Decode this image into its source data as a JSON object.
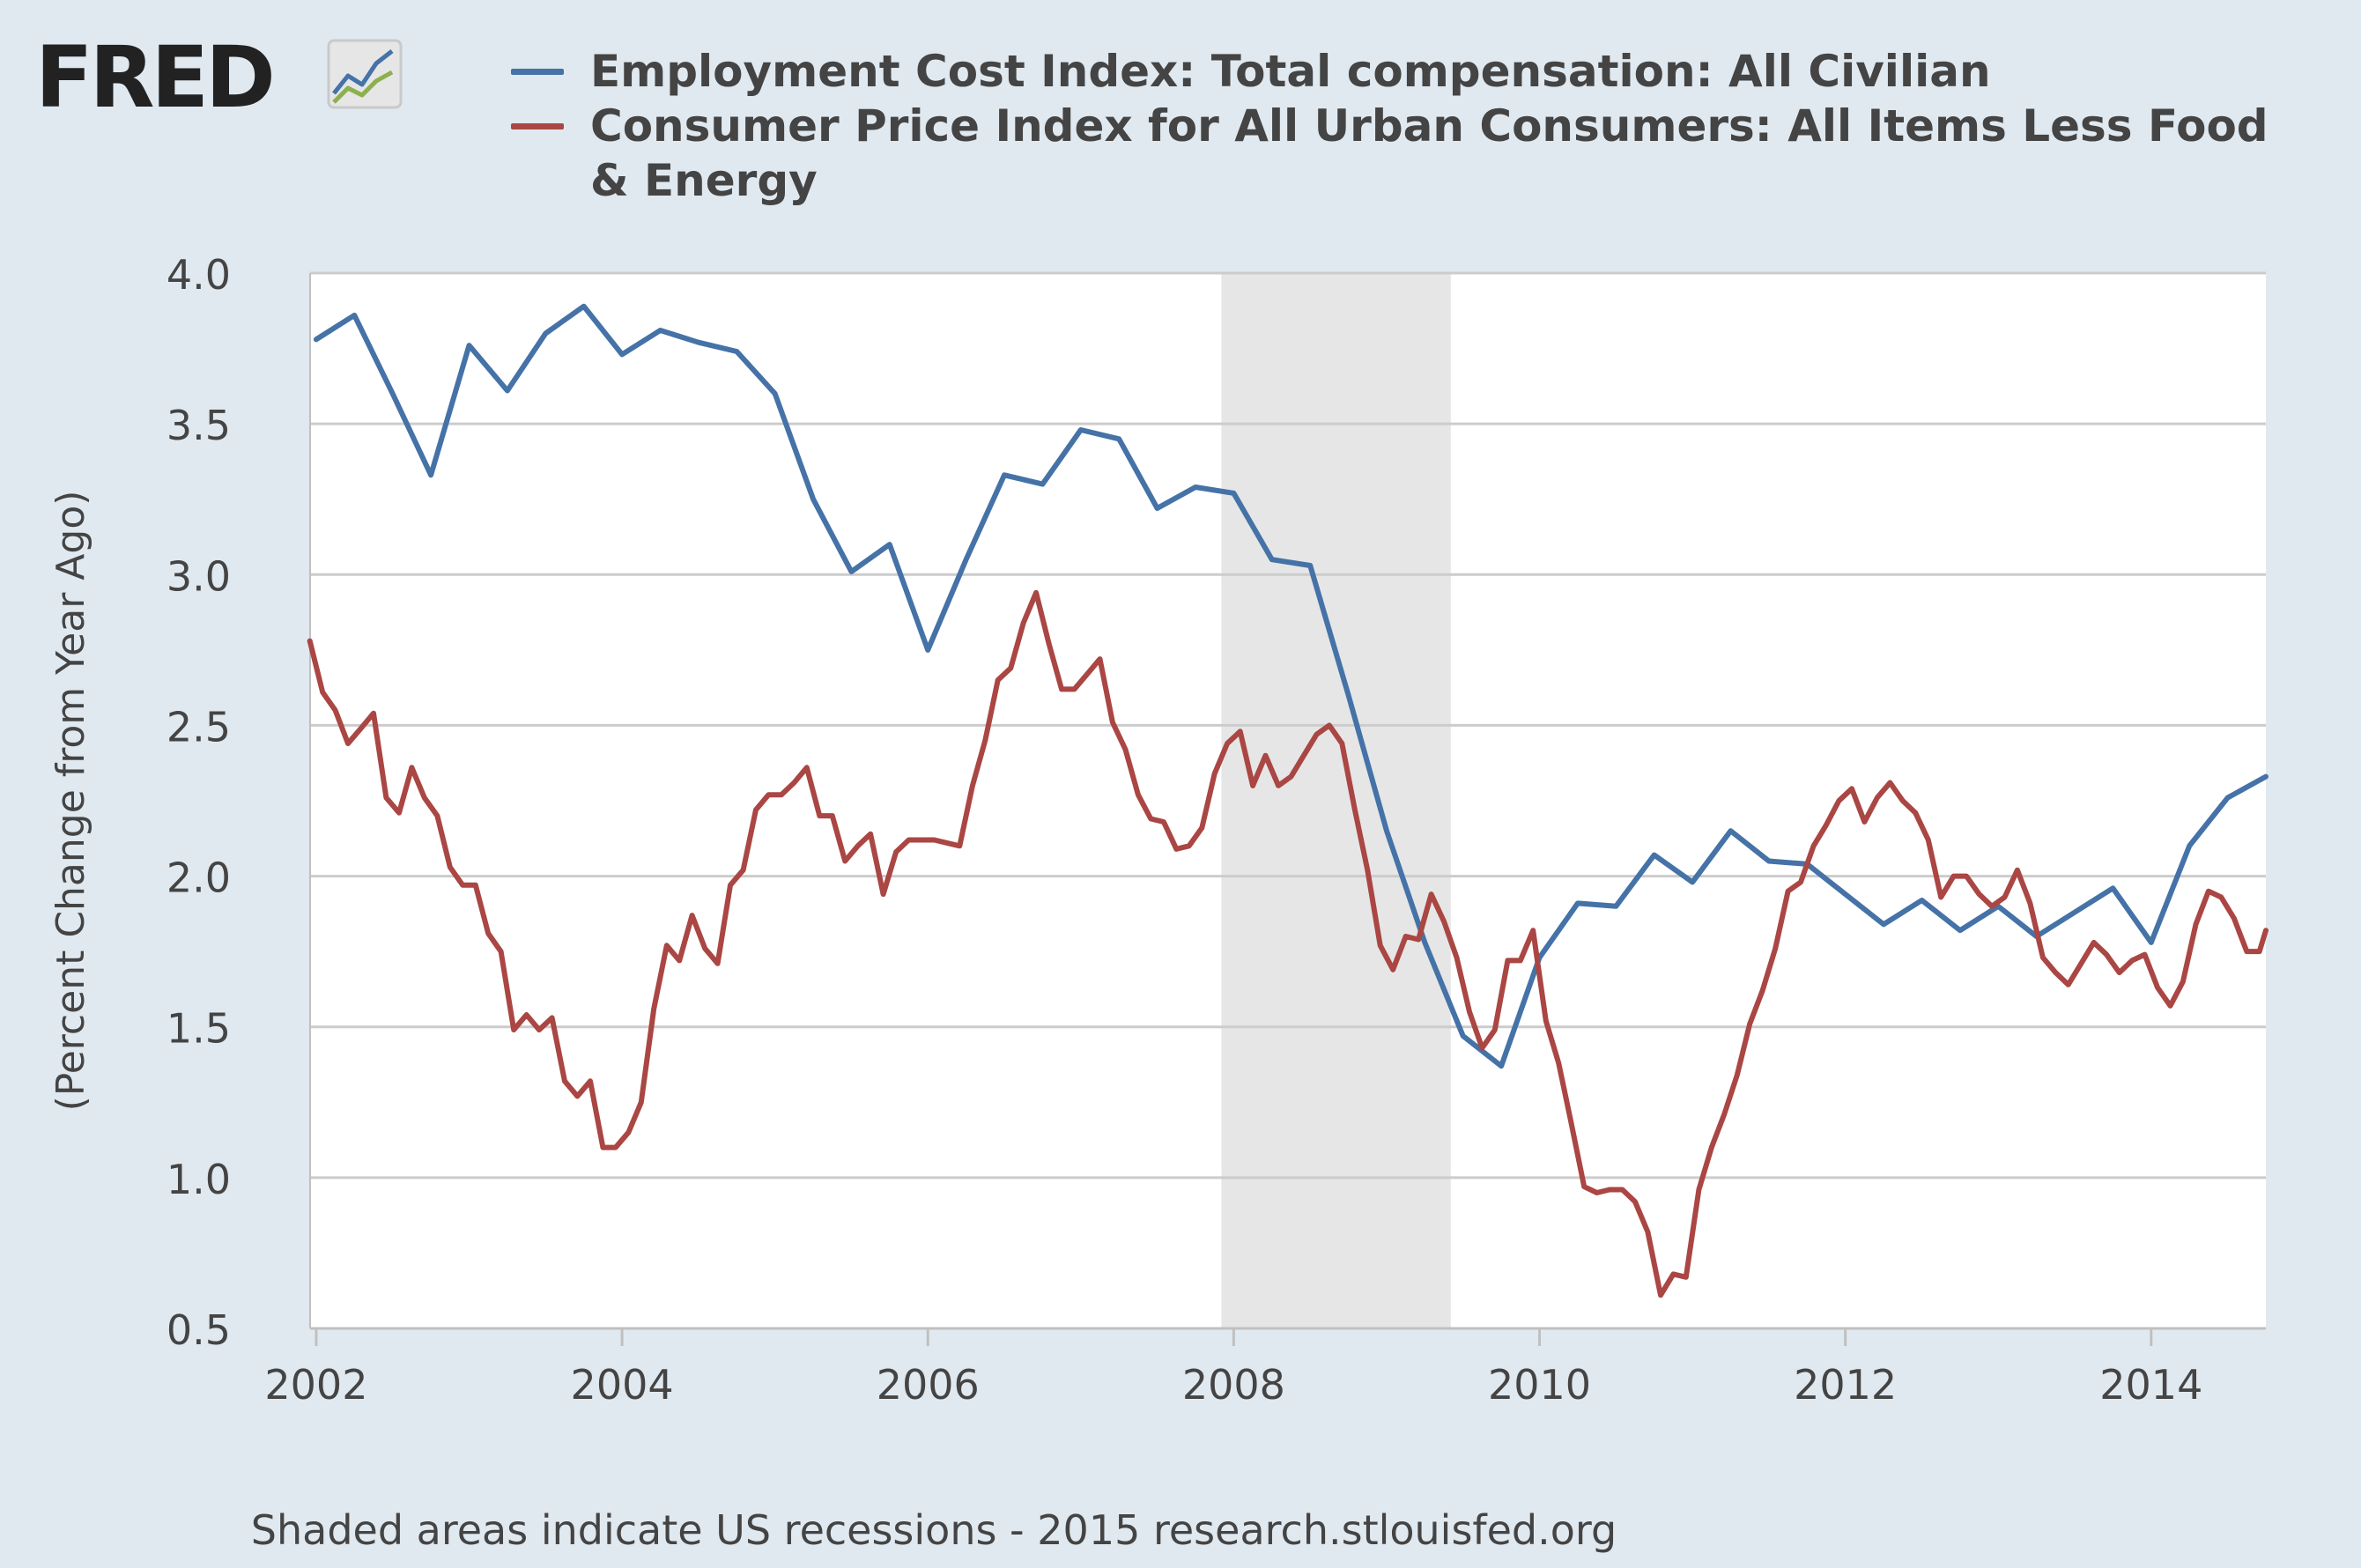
{
  "logo": {
    "text": "FRED",
    "icon": "line-chart-icon"
  },
  "footer": {
    "text": "Shaded areas indicate US recessions - 2015 research.stlouisfed.org"
  },
  "colors": {
    "eci": "#4572a7",
    "cpi": "#aa4643",
    "recession": "#e6e6e6",
    "background": "#e1e9f0",
    "plot": "#ffffff",
    "grid": "#cccccc"
  },
  "chart_data": {
    "type": "line",
    "title": "",
    "xlabel": "",
    "ylabel": "(Percent Change from Year Ago)",
    "xlim": [
      2001.96,
      2014.75
    ],
    "ylim": [
      0.5,
      4.0
    ],
    "yticks": [
      0.5,
      1.0,
      1.5,
      2.0,
      2.5,
      3.0,
      3.5,
      4.0
    ],
    "ytick_labels": [
      "0.5",
      "1.0",
      "1.5",
      "2.0",
      "2.5",
      "3.0",
      "3.5",
      "4.0"
    ],
    "xticks": [
      2002,
      2004,
      2006,
      2008,
      2010,
      2012,
      2014
    ],
    "xtick_labels": [
      "2002",
      "2004",
      "2006",
      "2008",
      "2010",
      "2012",
      "2014"
    ],
    "legend_position": "top",
    "recessions": [
      [
        2007.92,
        2009.42
      ]
    ],
    "series": [
      {
        "name": "Employment Cost Index: Total compensation: All Civilian",
        "color": "#4572a7",
        "x": [
          2002.0,
          2002.25,
          2002.5,
          2002.75,
          2003.0,
          2003.25,
          2003.5,
          2003.75,
          2004.0,
          2004.25,
          2004.5,
          2004.75,
          2005.0,
          2005.25,
          2005.5,
          2005.75,
          2006.0,
          2006.25,
          2006.5,
          2006.75,
          2007.0,
          2007.25,
          2007.5,
          2007.75,
          2008.0,
          2008.25,
          2008.5,
          2008.75,
          2009.0,
          2009.25,
          2009.5,
          2009.75,
          2010.0,
          2010.25,
          2010.5,
          2010.75,
          2011.0,
          2011.25,
          2011.5,
          2011.75,
          2012.0,
          2012.25,
          2012.5,
          2012.75,
          2013.0,
          2013.25,
          2013.5,
          2013.75,
          2014.0,
          2014.25,
          2014.5,
          2014.75
        ],
        "values": [
          3.78,
          3.86,
          3.6,
          3.33,
          3.76,
          3.61,
          3.8,
          3.89,
          3.73,
          3.81,
          3.77,
          3.74,
          3.6,
          3.25,
          3.01,
          3.1,
          2.75,
          3.05,
          3.33,
          3.3,
          3.48,
          3.45,
          3.22,
          3.29,
          3.27,
          3.05,
          3.03,
          2.6,
          2.15,
          1.78,
          1.47,
          1.37,
          1.73,
          1.91,
          1.9,
          2.07,
          1.98,
          2.15,
          2.05,
          2.04,
          1.94,
          1.84,
          1.92,
          1.82,
          1.9,
          1.8,
          1.88,
          1.96,
          1.78,
          2.1,
          2.26,
          2.33
        ]
      },
      {
        "name": "Consumer Price Index for All Urban Consumers: All Items Less Food & Energy",
        "color": "#aa4643",
        "x": [
          2001.958,
          2002.042,
          2002.125,
          2002.208,
          2002.292,
          2002.375,
          2002.458,
          2002.542,
          2002.625,
          2002.708,
          2002.792,
          2002.875,
          2002.958,
          2003.042,
          2003.125,
          2003.208,
          2003.292,
          2003.375,
          2003.458,
          2003.542,
          2003.625,
          2003.708,
          2003.792,
          2003.875,
          2003.958,
          2004.042,
          2004.125,
          2004.208,
          2004.292,
          2004.375,
          2004.458,
          2004.542,
          2004.625,
          2004.708,
          2004.792,
          2004.875,
          2004.958,
          2005.042,
          2005.125,
          2005.208,
          2005.292,
          2005.375,
          2005.458,
          2005.542,
          2005.625,
          2005.708,
          2005.792,
          2005.875,
          2005.958,
          2006.042,
          2006.125,
          2006.208,
          2006.292,
          2006.375,
          2006.458,
          2006.542,
          2006.625,
          2006.708,
          2006.792,
          2006.875,
          2006.958,
          2007.042,
          2007.125,
          2007.208,
          2007.292,
          2007.375,
          2007.458,
          2007.542,
          2007.625,
          2007.708,
          2007.792,
          2007.875,
          2007.958,
          2008.042,
          2008.125,
          2008.208,
          2008.292,
          2008.375,
          2008.458,
          2008.542,
          2008.625,
          2008.708,
          2008.792,
          2008.875,
          2008.958,
          2009.042,
          2009.125,
          2009.208,
          2009.292,
          2009.375,
          2009.458,
          2009.542,
          2009.625,
          2009.708,
          2009.792,
          2009.875,
          2009.958,
          2010.042,
          2010.125,
          2010.208,
          2010.292,
          2010.375,
          2010.458,
          2010.542,
          2010.625,
          2010.708,
          2010.792,
          2010.875,
          2010.958,
          2011.042,
          2011.125,
          2011.208,
          2011.292,
          2011.375,
          2011.458,
          2011.542,
          2011.625,
          2011.708,
          2011.792,
          2011.875,
          2011.958,
          2012.042,
          2012.125,
          2012.208,
          2012.292,
          2012.375,
          2012.458,
          2012.542,
          2012.625,
          2012.708,
          2012.792,
          2012.875,
          2012.958,
          2013.042,
          2013.125,
          2013.208,
          2013.292,
          2013.375,
          2013.458,
          2013.542,
          2013.625,
          2013.708,
          2013.792,
          2013.875,
          2013.958,
          2014.042,
          2014.125,
          2014.208,
          2014.292,
          2014.375,
          2014.458,
          2014.542,
          2014.625,
          2014.708,
          2014.75
        ],
        "values": [
          2.78,
          2.61,
          2.55,
          2.44,
          2.49,
          2.54,
          2.26,
          2.21,
          2.36,
          2.26,
          2.2,
          2.03,
          1.97,
          1.97,
          1.81,
          1.75,
          1.49,
          1.54,
          1.49,
          1.53,
          1.32,
          1.27,
          1.32,
          1.1,
          1.1,
          1.15,
          1.25,
          1.56,
          1.77,
          1.72,
          1.87,
          1.76,
          1.71,
          1.97,
          2.02,
          2.22,
          2.27,
          2.27,
          2.31,
          2.36,
          2.2,
          2.2,
          2.05,
          2.1,
          2.14,
          1.94,
          2.08,
          2.12,
          2.12,
          2.12,
          2.11,
          2.1,
          2.3,
          2.45,
          2.65,
          2.69,
          2.84,
          2.94,
          2.77,
          2.62,
          2.62,
          2.67,
          2.72,
          2.51,
          2.42,
          2.27,
          2.19,
          2.18,
          2.09,
          2.1,
          2.16,
          2.34,
          2.44,
          2.48,
          2.3,
          2.4,
          2.3,
          2.33,
          2.4,
          2.47,
          2.5,
          2.44,
          2.22,
          2.02,
          1.77,
          1.69,
          1.8,
          1.79,
          1.94,
          1.85,
          1.73,
          1.55,
          1.43,
          1.49,
          1.72,
          1.72,
          1.82,
          1.52,
          1.38,
          1.18,
          0.97,
          0.95,
          0.96,
          0.96,
          0.92,
          0.82,
          0.61,
          0.68,
          0.67,
          0.96,
          1.1,
          1.21,
          1.34,
          1.51,
          1.62,
          1.76,
          1.95,
          1.98,
          2.1,
          2.17,
          2.25,
          2.29,
          2.18,
          2.26,
          2.31,
          2.25,
          2.21,
          2.12,
          1.93,
          2.0,
          2.0,
          1.94,
          1.9,
          1.93,
          2.02,
          1.91,
          1.73,
          1.68,
          1.64,
          1.71,
          1.78,
          1.74,
          1.68,
          1.72,
          1.74,
          1.63,
          1.57,
          1.65,
          1.84,
          1.95,
          1.93,
          1.86,
          1.75,
          1.75,
          1.82
        ]
      }
    ]
  }
}
